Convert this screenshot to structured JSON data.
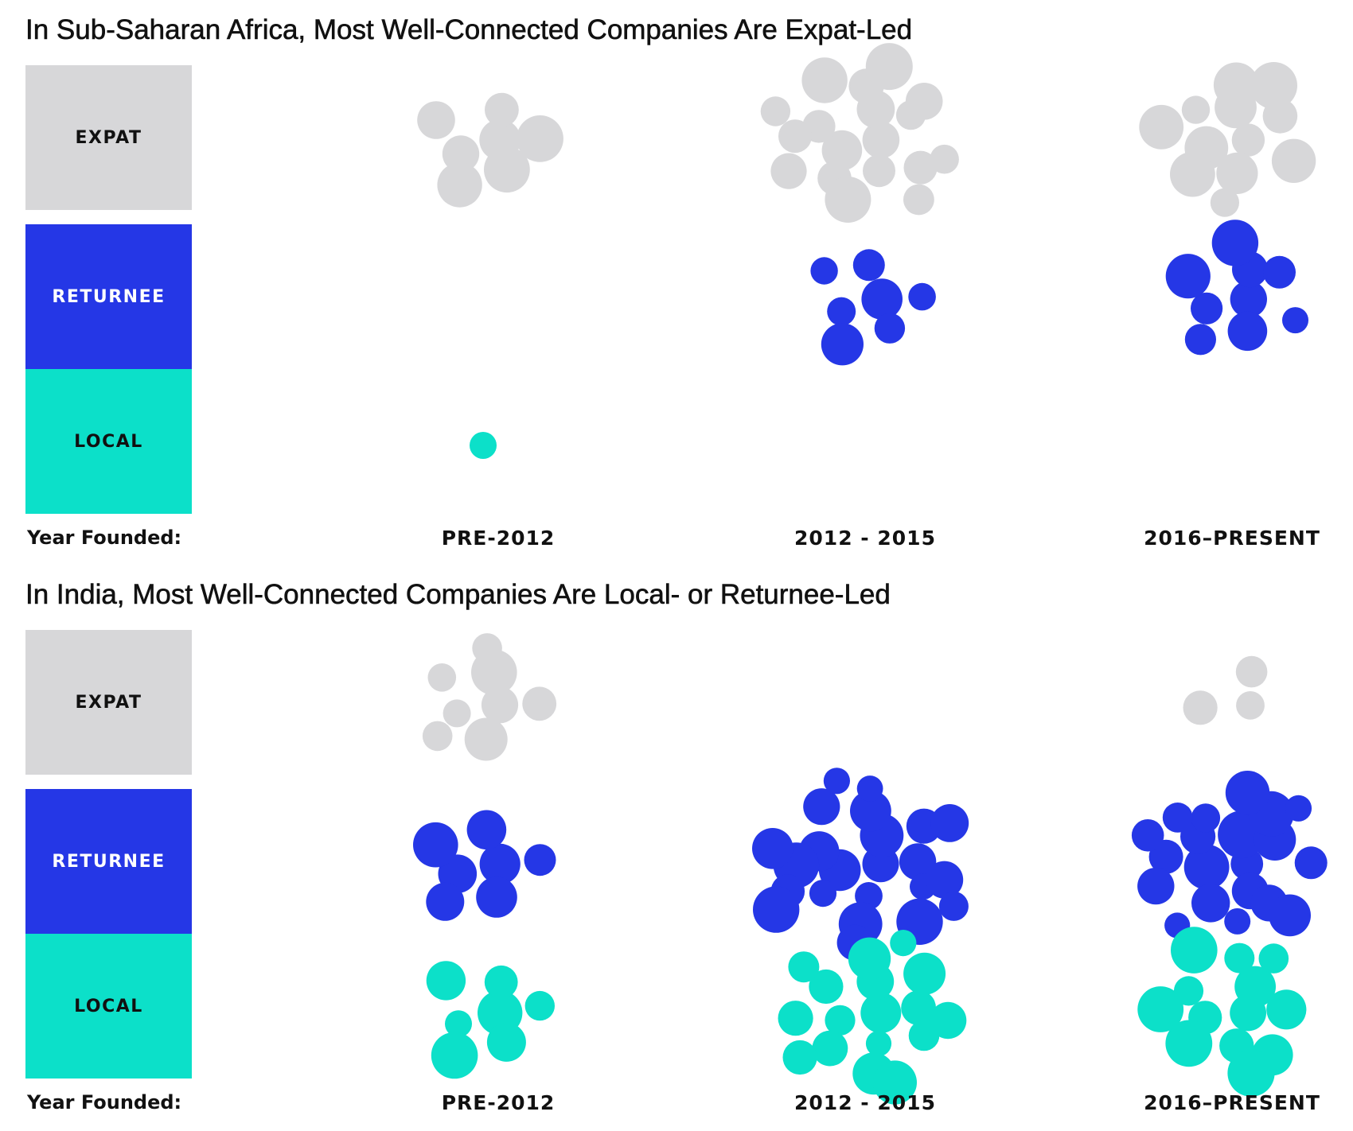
{
  "colors": {
    "expat": "#d7d7d9",
    "returnee": "#2537e6",
    "local": "#0ce0c9"
  },
  "legend": {
    "expat": "EXPAT",
    "returnee": "RETURNEE",
    "local": "LOCAL"
  },
  "axis_label": "Year Founded:",
  "periods": [
    "PRE-2012",
    "2012 - 2015",
    "2016–PRESENT"
  ],
  "chart_data": [
    {
      "type": "bubble",
      "title": "In Sub-Saharan Africa, Most Well-Connected Companies Are Expat-Led",
      "categories": [
        "PRE-2012",
        "2012 - 2015",
        "2016–PRESENT"
      ],
      "series": [
        {
          "name": "EXPAT",
          "counts": [
            7,
            18,
            12
          ]
        },
        {
          "name": "RETURNEE",
          "counts": [
            0,
            7,
            9
          ]
        },
        {
          "name": "LOCAL",
          "counts": [
            1,
            0,
            0
          ]
        }
      ]
    },
    {
      "type": "bubble",
      "title": "In India, Most Well-Connected Companies Are Local- or Returnee-Led",
      "categories": [
        "PRE-2012",
        "2012 - 2015",
        "2016–PRESENT"
      ],
      "series": [
        {
          "name": "EXPAT",
          "counts": [
            8,
            0,
            3
          ]
        },
        {
          "name": "RETURNEE",
          "counts": [
            7,
            23,
            20
          ]
        },
        {
          "name": "LOCAL",
          "counts": [
            7,
            17,
            13
          ]
        }
      ]
    }
  ]
}
